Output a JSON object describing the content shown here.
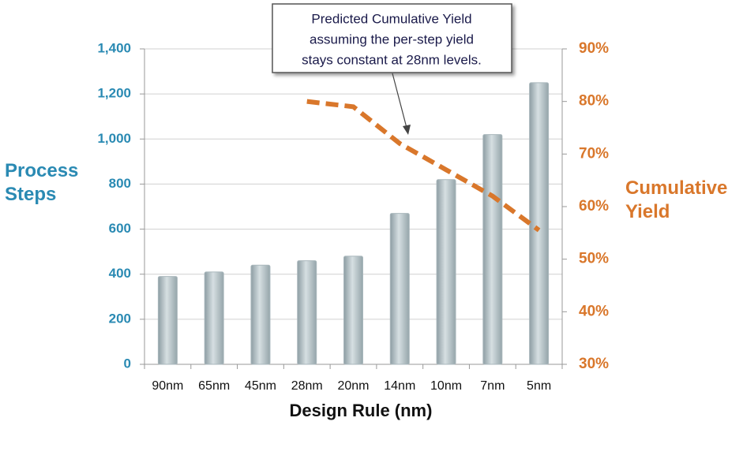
{
  "chart_data": {
    "type": "bar",
    "categories": [
      "90nm",
      "65nm",
      "45nm",
      "28nm",
      "20nm",
      "14nm",
      "10nm",
      "7nm",
      "5nm"
    ],
    "series": [
      {
        "color": "#a9b7bc",
        "values": [
          390,
          410,
          440,
          460,
          480,
          670,
          820,
          1020,
          1250
        ]
      },
      {
        "type": "line",
        "axis": "y2",
        "color": "#d9772b",
        "values": [
          null,
          null,
          null,
          80,
          79,
          72,
          67,
          62,
          55.5
        ]
      }
    ],
    "ylabel": "Process Steps",
    "y2label": "Cumulative Yield",
    "xlabel": "Design Rule (nm)",
    "annotation": [
      "Predicted Cumulative Yield",
      "assuming the per-step yield",
      "stays constant at 28nm levels."
    ],
    "ylim": [
      0,
      1400
    ],
    "yticks": [
      0,
      200,
      400,
      600,
      800,
      {
        "value": 1000,
        "label": "1,000"
      },
      {
        "value": 1200,
        "label": "1,200"
      },
      {
        "value": 1400,
        "label": "1,400"
      }
    ],
    "y2lim": [
      30,
      90
    ],
    "y2ticks": [
      {
        "value": 30,
        "label": "30%"
      },
      {
        "value": 40,
        "label": "40%"
      },
      {
        "value": 50,
        "label": "50%"
      },
      {
        "value": 60,
        "label": "60%"
      },
      {
        "value": 70,
        "label": "70%"
      },
      {
        "value": 80,
        "label": "80%"
      },
      {
        "value": 90,
        "label": "90%"
      }
    ],
    "grid": true
  }
}
